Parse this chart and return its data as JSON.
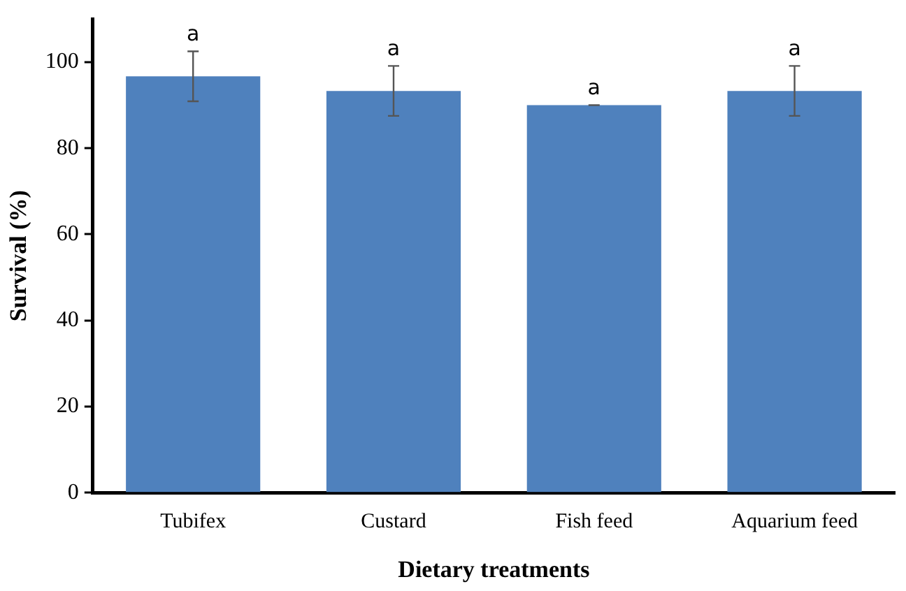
{
  "chart_data": {
    "type": "bar",
    "xlabel": "Dietary treatments",
    "ylabel": "Survival (%)",
    "categories": [
      "Tubifex",
      "Custard",
      "Fish feed",
      "Aquarium feed"
    ],
    "values": [
      96.7,
      93.3,
      90,
      93.3
    ],
    "errors": [
      5.8,
      5.8,
      0,
      5.8
    ],
    "color": "#4f81bd",
    "ylim": [
      0,
      110
    ],
    "yticks": [
      0,
      20,
      40,
      60,
      80,
      100
    ],
    "grid": false,
    "legend": false,
    "annotations": [
      {
        "text": "a",
        "x": "Tubifex",
        "y": 102.5
      },
      {
        "text": "a",
        "x": "Custard",
        "y": 99.1
      },
      {
        "text": "a",
        "x": "Fish feed",
        "y": 90
      },
      {
        "text": "a",
        "x": "Aquarium feed",
        "y": 99.1
      }
    ]
  }
}
